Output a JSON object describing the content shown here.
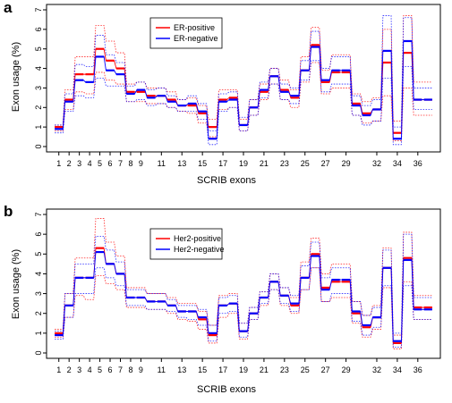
{
  "chart_data": [
    {
      "type": "line",
      "panel": "a",
      "xlabel": "SCRIB exons",
      "ylabel": "Exon usage (%)",
      "xlim": [
        1,
        37
      ],
      "ylim": [
        0,
        7
      ],
      "yticks": [
        0,
        1,
        2,
        3,
        4,
        5,
        6,
        7
      ],
      "xticks": [
        1,
        2,
        3,
        4,
        5,
        6,
        7,
        8,
        9,
        11,
        13,
        15,
        17,
        19,
        21,
        23,
        25,
        27,
        29,
        32,
        34,
        36
      ],
      "legend_position": "top-center",
      "series": [
        {
          "name": "ER-positive",
          "color": "#ff0000",
          "x": [
            1,
            2,
            3,
            4,
            5,
            6,
            7,
            8,
            9,
            10,
            11,
            12,
            13,
            14,
            15,
            16,
            17,
            18,
            19,
            20,
            21,
            22,
            23,
            24,
            25,
            26,
            27,
            28,
            29,
            30,
            31,
            32,
            33,
            34,
            35,
            36,
            37
          ],
          "values": [
            1.0,
            2.4,
            3.7,
            3.7,
            5.0,
            4.4,
            4.0,
            2.8,
            2.8,
            2.6,
            2.6,
            2.4,
            2.1,
            2.1,
            1.7,
            1.0,
            2.4,
            2.5,
            1.1,
            2.0,
            2.8,
            3.6,
            2.9,
            2.5,
            3.9,
            5.2,
            3.3,
            3.8,
            3.8,
            2.2,
            1.7,
            1.9,
            4.3,
            0.7,
            4.8,
            2.4,
            2.4
          ],
          "upper": [
            1.1,
            2.9,
            4.6,
            4.6,
            6.2,
            5.4,
            4.8,
            3.2,
            3.3,
            3.0,
            3.0,
            2.8,
            2.4,
            2.5,
            2.1,
            1.4,
            2.9,
            2.9,
            1.4,
            2.4,
            3.2,
            4.0,
            3.4,
            2.9,
            4.6,
            6.1,
            3.9,
            4.7,
            4.7,
            2.7,
            2.3,
            2.5,
            6.0,
            1.3,
            6.7,
            3.3,
            3.3
          ],
          "lower": [
            0.8,
            1.9,
            2.8,
            2.7,
            3.8,
            3.4,
            3.2,
            2.3,
            2.3,
            2.2,
            2.2,
            2.0,
            1.8,
            1.7,
            1.2,
            0.5,
            1.9,
            2.0,
            0.8,
            1.6,
            2.4,
            3.2,
            2.4,
            2.0,
            3.3,
            4.3,
            2.7,
            3.0,
            3.0,
            1.6,
            1.2,
            1.3,
            2.6,
            0.3,
            3.0,
            1.6,
            1.6
          ]
        },
        {
          "name": "ER-negative",
          "color": "#0000ff",
          "x": [
            1,
            2,
            3,
            4,
            5,
            6,
            7,
            8,
            9,
            10,
            11,
            12,
            13,
            14,
            15,
            16,
            17,
            18,
            19,
            20,
            21,
            22,
            23,
            24,
            25,
            26,
            27,
            28,
            29,
            30,
            31,
            32,
            33,
            34,
            35,
            36,
            37
          ],
          "values": [
            0.9,
            2.3,
            3.4,
            3.3,
            4.6,
            3.9,
            3.7,
            2.7,
            2.9,
            2.5,
            2.6,
            2.3,
            2.1,
            2.2,
            1.8,
            0.4,
            2.3,
            2.4,
            1.1,
            2.0,
            2.9,
            3.6,
            2.8,
            2.6,
            3.9,
            5.1,
            3.4,
            3.9,
            3.9,
            2.1,
            1.6,
            1.9,
            4.9,
            0.4,
            5.4,
            2.4,
            2.4
          ],
          "upper": [
            1.1,
            2.7,
            4.2,
            4.1,
            5.7,
            4.7,
            4.3,
            3.1,
            3.3,
            2.9,
            3.0,
            2.6,
            2.4,
            2.6,
            2.2,
            0.8,
            2.7,
            2.8,
            1.5,
            2.4,
            3.3,
            4.0,
            3.2,
            3.0,
            4.4,
            5.9,
            4.0,
            4.6,
            4.6,
            2.6,
            2.1,
            2.4,
            6.7,
            1.0,
            6.6,
            3.0,
            3.0
          ],
          "lower": [
            0.7,
            1.8,
            2.6,
            2.5,
            3.5,
            3.1,
            3.1,
            2.3,
            2.4,
            2.1,
            2.2,
            2.0,
            1.8,
            1.8,
            1.4,
            0.1,
            1.8,
            2.0,
            0.8,
            1.6,
            2.5,
            3.2,
            2.4,
            2.2,
            3.4,
            4.4,
            2.8,
            3.2,
            3.2,
            1.6,
            1.1,
            1.3,
            3.5,
            0.1,
            4.1,
            1.9,
            1.9
          ]
        }
      ]
    },
    {
      "type": "line",
      "panel": "b",
      "xlabel": "SCRIB exons",
      "ylabel": "Exon usage (%)",
      "xlim": [
        1,
        37
      ],
      "ylim": [
        0,
        7
      ],
      "yticks": [
        0,
        1,
        2,
        3,
        4,
        5,
        6,
        7
      ],
      "xticks": [
        1,
        2,
        3,
        4,
        5,
        6,
        7,
        8,
        9,
        11,
        13,
        15,
        17,
        19,
        21,
        23,
        25,
        27,
        29,
        32,
        34,
        36
      ],
      "legend_position": "top-center",
      "series": [
        {
          "name": "Her2-positive",
          "color": "#ff0000",
          "x": [
            1,
            2,
            3,
            4,
            5,
            6,
            7,
            8,
            9,
            10,
            11,
            12,
            13,
            14,
            15,
            16,
            17,
            18,
            19,
            20,
            21,
            22,
            23,
            24,
            25,
            26,
            27,
            28,
            29,
            30,
            31,
            32,
            33,
            34,
            35,
            36,
            37
          ],
          "values": [
            1.0,
            2.4,
            3.8,
            3.8,
            5.3,
            4.5,
            4.0,
            2.8,
            2.8,
            2.6,
            2.6,
            2.4,
            2.1,
            2.1,
            1.7,
            0.9,
            2.4,
            2.5,
            1.1,
            2.0,
            2.8,
            3.6,
            2.9,
            2.4,
            3.8,
            5.0,
            3.3,
            3.6,
            3.6,
            2.0,
            1.3,
            1.8,
            4.3,
            0.5,
            4.8,
            2.3,
            2.3
          ],
          "upper": [
            1.2,
            3.0,
            4.8,
            4.8,
            6.8,
            5.6,
            4.9,
            3.3,
            3.3,
            3.0,
            3.0,
            2.8,
            2.5,
            2.5,
            2.1,
            1.4,
            2.9,
            3.0,
            1.5,
            2.3,
            3.1,
            4.0,
            3.3,
            2.8,
            4.6,
            5.8,
            4.0,
            4.5,
            4.5,
            2.6,
            1.9,
            2.4,
            5.3,
            0.9,
            6.1,
            2.9,
            2.9
          ],
          "lower": [
            0.8,
            1.8,
            2.9,
            2.7,
            3.9,
            3.5,
            3.2,
            2.3,
            2.3,
            2.2,
            2.2,
            2.0,
            1.7,
            1.6,
            1.2,
            0.5,
            1.8,
            2.0,
            0.7,
            1.7,
            2.4,
            3.2,
            2.4,
            2.0,
            3.2,
            4.3,
            2.6,
            2.8,
            2.8,
            1.5,
            0.8,
            1.2,
            3.3,
            0.2,
            3.6,
            1.7,
            1.7
          ]
        },
        {
          "name": "Her2-negative",
          "color": "#0000ff",
          "x": [
            1,
            2,
            3,
            4,
            5,
            6,
            7,
            8,
            9,
            10,
            11,
            12,
            13,
            14,
            15,
            16,
            17,
            18,
            19,
            20,
            21,
            22,
            23,
            24,
            25,
            26,
            27,
            28,
            29,
            30,
            31,
            32,
            33,
            34,
            35,
            36,
            37
          ],
          "values": [
            0.9,
            2.4,
            3.8,
            3.8,
            5.1,
            4.5,
            4.0,
            2.8,
            2.8,
            2.6,
            2.6,
            2.4,
            2.1,
            2.1,
            1.8,
            1.0,
            2.4,
            2.5,
            1.1,
            2.0,
            2.8,
            3.6,
            2.9,
            2.5,
            3.8,
            4.9,
            3.2,
            3.7,
            3.7,
            2.1,
            1.4,
            1.8,
            4.3,
            0.6,
            4.7,
            2.2,
            2.2
          ],
          "upper": [
            1.1,
            3.0,
            4.5,
            4.5,
            5.9,
            5.2,
            4.6,
            3.2,
            3.2,
            3.0,
            3.0,
            2.7,
            2.4,
            2.4,
            2.2,
            1.4,
            2.8,
            2.9,
            1.5,
            2.3,
            3.1,
            4.0,
            3.3,
            2.9,
            4.4,
            5.6,
            3.8,
            4.3,
            4.3,
            2.6,
            1.9,
            2.3,
            5.2,
            1.0,
            6.0,
            2.8,
            2.8
          ],
          "lower": [
            0.7,
            1.8,
            3.0,
            3.0,
            4.3,
            3.8,
            3.4,
            2.4,
            2.4,
            2.2,
            2.2,
            2.1,
            1.8,
            1.7,
            1.4,
            0.6,
            2.0,
            2.1,
            0.8,
            1.7,
            2.5,
            3.2,
            2.5,
            2.1,
            3.2,
            4.3,
            2.6,
            3.0,
            3.0,
            1.6,
            0.9,
            1.3,
            3.4,
            0.3,
            3.4,
            1.7,
            1.7
          ]
        }
      ]
    }
  ],
  "panels": [
    {
      "letter": "a",
      "ylabel": "Exon usage (%)",
      "xlabel": "SCRIB exons"
    },
    {
      "letter": "b",
      "ylabel": "Exon usage (%)",
      "xlabel": "SCRIB exons"
    }
  ]
}
